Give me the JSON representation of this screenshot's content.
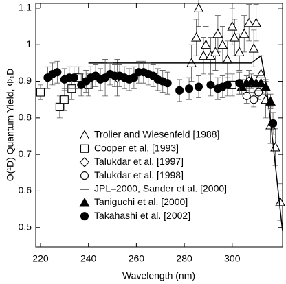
{
  "chart_data": {
    "type": "scatter",
    "x_label": "Wavelength (nm)",
    "y_label": "O(¹D) Quantum Yield, Φ₁D",
    "xlim": [
      218,
      321
    ],
    "xticks": [
      220,
      240,
      260,
      280,
      300
    ],
    "ylim": [
      0.447,
      1.113
    ],
    "yticks": [
      0.5,
      0.6,
      0.7,
      0.8,
      0.9,
      {
        "value": 1,
        "label": "1"
      },
      1.1
    ],
    "series": [
      {
        "name": "Trolier and Wiesenfeld [1988]",
        "marker": "triangle-open",
        "color": "#000000",
        "x": [
          283,
          285,
          286,
          288,
          289,
          291,
          293,
          294,
          296,
          298,
          300,
          301,
          303,
          305,
          307,
          309,
          310,
          312,
          314,
          316,
          318,
          320
        ],
        "values": [
          0.95,
          1.02,
          1.1,
          0.97,
          1.0,
          0.97,
          0.98,
          1.03,
          1.0,
          0.96,
          1.05,
          1.02,
          0.98,
          1.03,
          1.06,
          0.99,
          1.06,
          0.92,
          0.85,
          0.78,
          0.72,
          0.57
        ],
        "errors": [
          0.05,
          0.05,
          0.05,
          0.05,
          0.05,
          0.05,
          0.05,
          0.05,
          0.05,
          0.05,
          0.05,
          0.05,
          0.05,
          0.05,
          0.05,
          0.05,
          0.05,
          0.05,
          0.05,
          0.05,
          0.05,
          0.05
        ]
      },
      {
        "name": "Cooper et al. [1993]",
        "marker": "square-open",
        "color": "#000000",
        "x": [
          220,
          228,
          230,
          233,
          236,
          240,
          300
        ],
        "values": [
          0.87,
          0.83,
          0.85,
          0.88,
          0.91,
          0.89,
          0.89
        ],
        "errors": [
          0.02,
          0.03,
          0.03,
          0.03,
          0.03,
          0.03,
          0.03
        ]
      },
      {
        "name": "Talukdar et al. [1997]",
        "marker": "diamond-open",
        "color": "#000000",
        "x": [
          252,
          307
        ],
        "values": [
          0.91,
          0.9
        ],
        "errors": [
          0.05,
          0.03
        ]
      },
      {
        "name": "Talukdar et al. [1998]",
        "marker": "circle-open",
        "color": "#000000",
        "x": [
          306,
          309,
          311
        ],
        "values": [
          0.86,
          0.85,
          0.87
        ],
        "errors": [
          0.02,
          0.02,
          0.02
        ]
      },
      {
        "name": "JPL–2000, Sander et al. [2000]",
        "marker": "line",
        "color": "#000000",
        "x": [
          240,
          305,
          308,
          310,
          312,
          314,
          316,
          318,
          320,
          321
        ],
        "values": [
          0.95,
          0.95,
          0.95,
          0.96,
          0.97,
          0.9,
          0.79,
          0.67,
          0.55,
          0.49
        ]
      },
      {
        "name": "Taniguchi et al. [2000]",
        "marker": "triangle",
        "color": "#000000",
        "x": [
          304,
          306,
          308,
          310,
          312,
          314,
          316
        ],
        "values": [
          0.885,
          0.895,
          0.9,
          0.895,
          0.895,
          0.885,
          0.845
        ],
        "errors": [
          0.02,
          0.02,
          0.02,
          0.02,
          0.02,
          0.02,
          0.02
        ]
      },
      {
        "name": "Takahashi et al. [2002]",
        "marker": "circle",
        "color": "#000000",
        "x": [
          223,
          225,
          227,
          230,
          232,
          234,
          237,
          239,
          241,
          243,
          245,
          247,
          249,
          251,
          253,
          255,
          257,
          259,
          261,
          263,
          265,
          267,
          269,
          271,
          273,
          278,
          282,
          286,
          291,
          294,
          296,
          298,
          303,
          317
        ],
        "values": [
          0.91,
          0.92,
          0.925,
          0.905,
          0.91,
          0.91,
          0.89,
          0.9,
          0.91,
          0.915,
          0.905,
          0.91,
          0.92,
          0.915,
          0.915,
          0.91,
          0.905,
          0.91,
          0.925,
          0.925,
          0.92,
          0.915,
          0.905,
          0.9,
          0.895,
          0.875,
          0.88,
          0.885,
          0.89,
          0.88,
          0.885,
          0.89,
          0.895,
          0.785
        ],
        "errors": [
          0.03,
          0.03,
          0.03,
          0.03,
          0.03,
          0.03,
          0.03,
          0.03,
          0.03,
          0.03,
          0.03,
          0.05,
          0.03,
          0.03,
          0.03,
          0.03,
          0.03,
          0.03,
          0.03,
          0.03,
          0.03,
          0.03,
          0.03,
          0.03,
          0.03,
          0.03,
          0.03,
          0.03,
          0.03,
          0.03,
          0.03,
          0.03,
          0.03,
          0.03
        ]
      }
    ]
  }
}
